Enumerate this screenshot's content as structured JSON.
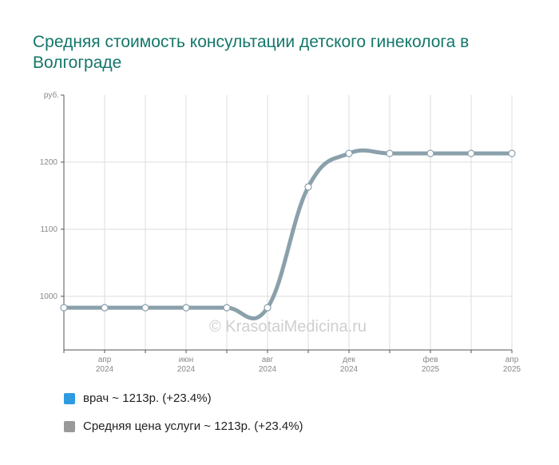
{
  "title": "Средняя стоимость консультации детского гинеколога в Волгограде",
  "watermark": "© KrasotaiMedicina.ru",
  "colors": {
    "title": "#13776a",
    "series_line": "#8aa0ab",
    "series_legend": "#999999",
    "vrach_legend": "#2e9be0",
    "grid": "#dddddd",
    "axis": "#555555"
  },
  "legend": [
    {
      "label": "врач ~ 1213р. (+23.4%)",
      "color": "#2e9be0"
    },
    {
      "label": "Средняя цена услуги ~ 1213р. (+23.4%)",
      "color": "#999999"
    }
  ],
  "chart_data": {
    "type": "line",
    "ylabel": "руб.",
    "ylim": [
      920,
      1300
    ],
    "yticks": [
      1000,
      1100,
      1200
    ],
    "xlim": [
      0,
      11
    ],
    "x_tick_labels": [
      {
        "x": 1,
        "month": "апр",
        "year": "2024"
      },
      {
        "x": 3,
        "month": "июн",
        "year": "2024"
      },
      {
        "x": 5,
        "month": "авг",
        "year": "2024"
      },
      {
        "x": 7,
        "month": "дек",
        "year": "2024"
      },
      {
        "x": 9,
        "month": "фев",
        "year": "2025"
      },
      {
        "x": 11,
        "month": "апр",
        "year": "2025"
      }
    ],
    "grid": true,
    "series": [
      {
        "x": [
          0,
          1,
          2,
          3,
          4,
          5,
          6,
          7,
          8,
          9,
          10,
          11
        ],
        "values": [
          983,
          983,
          983,
          983,
          983,
          983,
          1163,
          1213,
          1213,
          1213,
          1213,
          1213
        ]
      }
    ]
  }
}
